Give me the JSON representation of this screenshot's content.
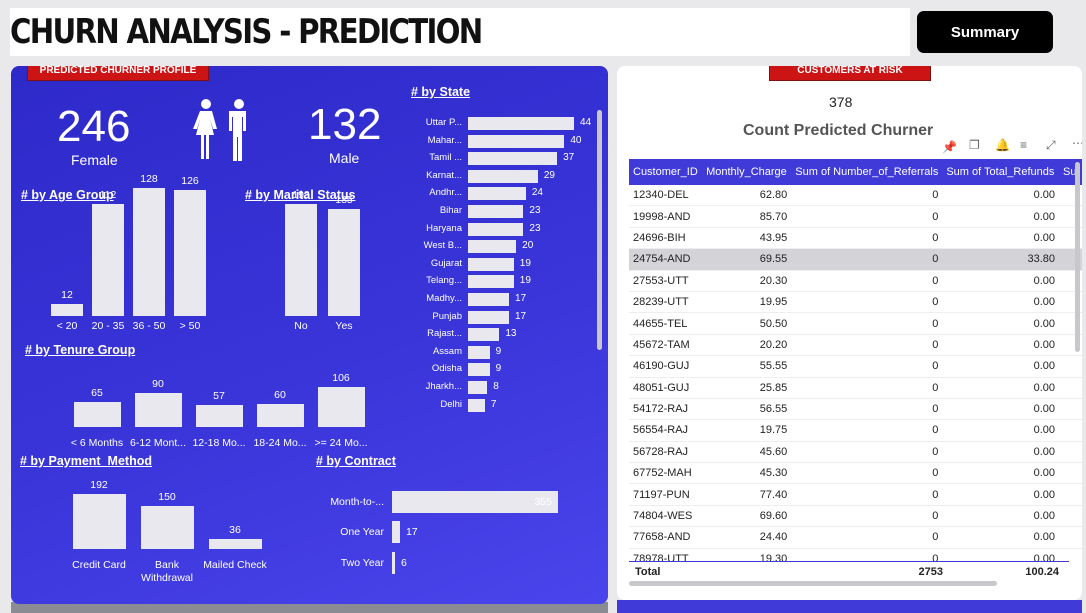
{
  "header": {
    "title": "CHURN ANALYSIS - PREDICTION",
    "summary_button": "Summary"
  },
  "profile": {
    "tag": "PREDICTED CHURNER PROFILE",
    "female_count": "246",
    "female_label": "Female",
    "male_count": "132",
    "male_label": "Male"
  },
  "age_group": {
    "title": "# by Age Group",
    "categories": [
      "< 20",
      "20 - 35",
      "36 - 50",
      "> 50"
    ],
    "values": [
      12,
      112,
      128,
      126
    ]
  },
  "marital_status": {
    "title": "# by Marital Status",
    "categories": [
      "No",
      "Yes"
    ],
    "values": [
      193,
      185
    ]
  },
  "tenure_group": {
    "title": "# by Tenure Group",
    "categories": [
      "< 6 Months",
      "6-12 Mont...",
      "12-18 Mo...",
      "18-24 Mo...",
      ">= 24 Mo..."
    ],
    "values": [
      65,
      90,
      57,
      60,
      106
    ]
  },
  "payment_method": {
    "title": "# by Payment_Method",
    "categories": [
      "Credit Card",
      "Bank Withdrawal",
      "Mailed Check"
    ],
    "values": [
      192,
      150,
      36
    ]
  },
  "contract": {
    "title": "# by Contract",
    "categories": [
      "Month-to-...",
      "One Year",
      "Two Year"
    ],
    "values": [
      355,
      17,
      6
    ]
  },
  "state": {
    "title": "# by State",
    "categories": [
      "Uttar P...",
      "Mahar...",
      "Tamil ...",
      "Karnat...",
      "Andhr...",
      "Bihar",
      "Haryana",
      "West B...",
      "Gujarat",
      "Telang...",
      "Madhy...",
      "Punjab",
      "Rajast...",
      "Assam",
      "Odisha",
      "Jharkh...",
      "Delhi"
    ],
    "values": [
      44,
      40,
      37,
      29,
      24,
      23,
      23,
      20,
      19,
      19,
      17,
      17,
      13,
      9,
      9,
      8,
      7
    ]
  },
  "risk": {
    "tag": "CUSTOMERS AT RISK",
    "count": "378",
    "count_label": "Count Predicted Churner",
    "columns": [
      "Customer_ID",
      "Monthly_Charge",
      "Sum of Number_of_Referrals",
      "Sum of Total_Refunds",
      "Su"
    ],
    "rows": [
      [
        "12340-DEL",
        "62.80",
        "0",
        "0.00"
      ],
      [
        "19998-AND",
        "85.70",
        "0",
        "0.00"
      ],
      [
        "24696-BIH",
        "43.95",
        "0",
        "0.00"
      ],
      [
        "24754-AND",
        "69.55",
        "0",
        "33.80"
      ],
      [
        "27553-UTT",
        "20.30",
        "0",
        "0.00"
      ],
      [
        "28239-UTT",
        "19.95",
        "0",
        "0.00"
      ],
      [
        "44655-TEL",
        "50.50",
        "0",
        "0.00"
      ],
      [
        "45672-TAM",
        "20.20",
        "0",
        "0.00"
      ],
      [
        "46190-GUJ",
        "55.55",
        "0",
        "0.00"
      ],
      [
        "48051-GUJ",
        "25.85",
        "0",
        "0.00"
      ],
      [
        "54172-RAJ",
        "56.55",
        "0",
        "0.00"
      ],
      [
        "56554-RAJ",
        "19.75",
        "0",
        "0.00"
      ],
      [
        "56728-RAJ",
        "45.60",
        "0",
        "0.00"
      ],
      [
        "67752-MAH",
        "45.30",
        "0",
        "0.00"
      ],
      [
        "71197-PUN",
        "77.40",
        "0",
        "0.00"
      ],
      [
        "74804-WES",
        "69.60",
        "0",
        "0.00"
      ],
      [
        "77658-AND",
        "24.40",
        "0",
        "0.00"
      ],
      [
        "78978-UTT",
        "19.30",
        "0",
        "0.00"
      ]
    ],
    "total": {
      "label": "Total",
      "referrals": "2753",
      "refunds": "100.24"
    }
  },
  "icons": [
    "pin-icon",
    "copy-icon",
    "bell-icon",
    "filter-icon",
    "expand-icon",
    "more-icon"
  ]
}
